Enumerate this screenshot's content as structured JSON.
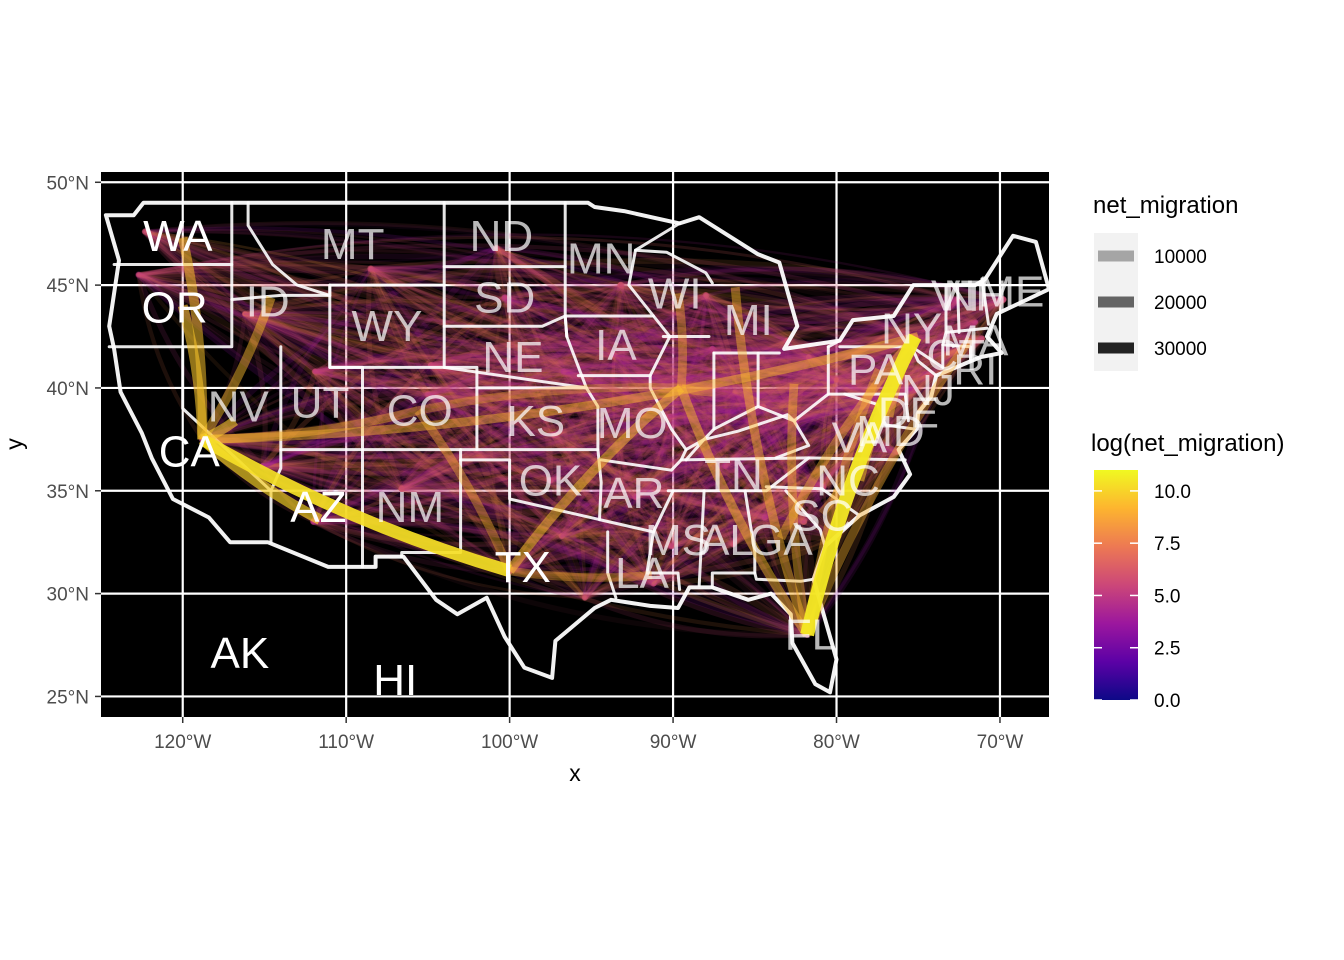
{
  "chart_data": {
    "type": "map",
    "xlabel": "x",
    "ylabel": "y",
    "xlim": [
      -125,
      -67
    ],
    "ylim": [
      24,
      50.5
    ],
    "x_ticks": [
      {
        "value": -120,
        "label": "120°W"
      },
      {
        "value": -110,
        "label": "110°W"
      },
      {
        "value": -100,
        "label": "100°W"
      },
      {
        "value": -90,
        "label": "90°W"
      },
      {
        "value": -80,
        "label": "80°W"
      },
      {
        "value": -70,
        "label": "70°W"
      }
    ],
    "y_ticks": [
      {
        "value": 25,
        "label": "25°N"
      },
      {
        "value": 30,
        "label": "30°N"
      },
      {
        "value": 35,
        "label": "35°N"
      },
      {
        "value": 40,
        "label": "40°N"
      },
      {
        "value": 45,
        "label": "45°N"
      },
      {
        "value": 50,
        "label": "50°N"
      }
    ],
    "panel_background": "#000000",
    "gridline_color": "#ffffff",
    "state_border_color": "#ffffff",
    "state_labels": [
      {
        "label": "WA",
        "lon": -120.3,
        "lat": 47.4
      },
      {
        "label": "OR",
        "lon": -120.5,
        "lat": 43.9
      },
      {
        "label": "ID",
        "lon": -114.8,
        "lat": 44.2
      },
      {
        "label": "MT",
        "lon": -109.6,
        "lat": 47.0
      },
      {
        "label": "ND",
        "lon": -100.5,
        "lat": 47.4
      },
      {
        "label": "SD",
        "lon": -100.3,
        "lat": 44.4
      },
      {
        "label": "MN",
        "lon": -94.4,
        "lat": 46.3
      },
      {
        "label": "WY",
        "lon": -107.5,
        "lat": 43.0
      },
      {
        "label": "NE",
        "lon": -99.8,
        "lat": 41.5
      },
      {
        "label": "IA",
        "lon": -93.5,
        "lat": 42.1
      },
      {
        "label": "WI",
        "lon": -89.9,
        "lat": 44.6
      },
      {
        "label": "MI",
        "lon": -85.4,
        "lat": 43.3
      },
      {
        "label": "NV",
        "lon": -116.6,
        "lat": 39.1
      },
      {
        "label": "UT",
        "lon": -111.6,
        "lat": 39.3
      },
      {
        "label": "CO",
        "lon": -105.5,
        "lat": 38.9
      },
      {
        "label": "KS",
        "lon": -98.4,
        "lat": 38.4
      },
      {
        "label": "MO",
        "lon": -92.5,
        "lat": 38.3
      },
      {
        "label": "CA",
        "lon": -119.6,
        "lat": 36.9
      },
      {
        "label": "AZ",
        "lon": -111.7,
        "lat": 34.2
      },
      {
        "label": "NM",
        "lon": -106.1,
        "lat": 34.2
      },
      {
        "label": "OK",
        "lon": -97.5,
        "lat": 35.5
      },
      {
        "label": "AR",
        "lon": -92.4,
        "lat": 34.9
      },
      {
        "label": "TN",
        "lon": -86.3,
        "lat": 35.8
      },
      {
        "label": "NC",
        "lon": -79.3,
        "lat": 35.5
      },
      {
        "label": "TX",
        "lon": -99.2,
        "lat": 31.3
      },
      {
        "label": "LA",
        "lon": -91.9,
        "lat": 31.0
      },
      {
        "label": "MS",
        "lon": -89.7,
        "lat": 32.6
      },
      {
        "label": "AL",
        "lon": -86.7,
        "lat": 32.6
      },
      {
        "label": "GA",
        "lon": -83.4,
        "lat": 32.6
      },
      {
        "label": "SC",
        "lon": -80.9,
        "lat": 33.8
      },
      {
        "label": "FL",
        "lon": -81.6,
        "lat": 28.0
      },
      {
        "label": "VA",
        "lon": -78.6,
        "lat": 37.6
      },
      {
        "label": "MD",
        "lon": -76.7,
        "lat": 37.9
      },
      {
        "label": "DE",
        "lon": -75.6,
        "lat": 38.8
      },
      {
        "label": "NJ",
        "lon": -74.4,
        "lat": 39.9
      },
      {
        "label": "PA",
        "lon": -77.6,
        "lat": 40.9
      },
      {
        "label": "NY",
        "lon": -75.4,
        "lat": 42.9
      },
      {
        "label": "CT",
        "lon": -72.7,
        "lat": 41.6
      },
      {
        "label": "RI",
        "lon": -71.5,
        "lat": 40.9
      },
      {
        "label": "MA",
        "lon": -71.5,
        "lat": 42.3
      },
      {
        "label": "VT",
        "lon": -72.5,
        "lat": 44.5
      },
      {
        "label": "NH",
        "lon": -71.5,
        "lat": 44.5
      },
      {
        "label": "ME",
        "lon": -69.3,
        "lat": 44.7
      },
      {
        "label": "AK",
        "lon": -116.5,
        "lat": 27.1
      },
      {
        "label": "HI",
        "lon": -107.0,
        "lat": 25.8
      }
    ],
    "flows": [
      {
        "from": [
          -118.8,
          37.5
        ],
        "to": [
          -100.0,
          31.1
        ],
        "net_migration": 30000
      },
      {
        "from": [
          -118.8,
          37.5
        ],
        "to": [
          -120.0,
          44.0
        ],
        "net_migration": 16000
      },
      {
        "from": [
          -118.8,
          37.5
        ],
        "to": [
          -120.0,
          47.3
        ],
        "net_migration": 14000
      },
      {
        "from": [
          -118.8,
          37.5
        ],
        "to": [
          -116.8,
          38.4
        ],
        "net_migration": 17000
      },
      {
        "from": [
          -118.8,
          37.5
        ],
        "to": [
          -111.6,
          33.6
        ],
        "net_migration": 20000
      },
      {
        "from": [
          -118.8,
          37.5
        ],
        "to": [
          -114.6,
          44.4
        ],
        "net_migration": 12000
      },
      {
        "from": [
          -118.8,
          37.5
        ],
        "to": [
          -105.6,
          38.9
        ],
        "net_migration": 9000
      },
      {
        "from": [
          -118.8,
          37.5
        ],
        "to": [
          -75.0,
          42.5
        ],
        "net_migration": 11000
      },
      {
        "from": [
          -75.2,
          42.5
        ],
        "to": [
          -81.8,
          28.0
        ],
        "net_migration": 38000
      },
      {
        "from": [
          -75.2,
          42.5
        ],
        "to": [
          -78.6,
          35.5
        ],
        "net_migration": 14000
      },
      {
        "from": [
          -75.2,
          42.5
        ],
        "to": [
          -83.4,
          32.7
        ],
        "net_migration": 10000
      },
      {
        "from": [
          -75.2,
          42.5
        ],
        "to": [
          -76.8,
          38.6
        ],
        "net_migration": 12000
      },
      {
        "from": [
          -89.5,
          40.0
        ],
        "to": [
          -100.0,
          31.1
        ],
        "net_migration": 13000
      },
      {
        "from": [
          -89.5,
          40.0
        ],
        "to": [
          -81.8,
          28.0
        ],
        "net_migration": 12000
      },
      {
        "from": [
          -89.5,
          40.0
        ],
        "to": [
          -89.7,
          44.6
        ],
        "net_migration": 9000
      },
      {
        "from": [
          -89.5,
          40.0
        ],
        "to": [
          -87.6,
          39.8
        ],
        "net_migration": 8000
      },
      {
        "from": [
          -89.5,
          40.0
        ],
        "to": [
          -105.6,
          38.9
        ],
        "net_migration": 7000
      },
      {
        "from": [
          -86.2,
          44.9
        ],
        "to": [
          -81.8,
          28.0
        ],
        "net_migration": 11000
      },
      {
        "from": [
          -82.6,
          40.2
        ],
        "to": [
          -81.8,
          28.0
        ],
        "net_migration": 10000
      },
      {
        "from": [
          -71.8,
          42.4
        ],
        "to": [
          -81.8,
          28.0
        ],
        "net_migration": 9000
      },
      {
        "from": [
          -77.4,
          40.9
        ],
        "to": [
          -81.8,
          28.0
        ],
        "net_migration": 9000
      },
      {
        "from": [
          -100.0,
          31.1
        ],
        "to": [
          -91.3,
          30.9
        ],
        "net_migration": 8000
      },
      {
        "from": [
          -100.0,
          31.1
        ],
        "to": [
          -105.6,
          38.9
        ],
        "net_migration": 9000
      },
      {
        "from": [
          -80.9,
          33.9
        ],
        "to": [
          -76.9,
          39.0
        ],
        "net_migration": 8000
      }
    ],
    "legends": [
      {
        "title": "net_migration",
        "type": "alpha",
        "entries": [
          {
            "label": "10000",
            "value": 10000
          },
          {
            "label": "20000",
            "value": 20000
          },
          {
            "label": "30000",
            "value": 30000
          }
        ]
      },
      {
        "title": "log(net_migration)",
        "type": "colorbar",
        "palette": "plasma",
        "stops": [
          "#0d0887",
          "#5c01a6",
          "#9c179e",
          "#cc4778",
          "#ed7953",
          "#fdb42f",
          "#f0f921"
        ],
        "range": [
          0,
          11
        ],
        "ticks": [
          {
            "label": "0.0",
            "value": 0
          },
          {
            "label": "2.5",
            "value": 2.5
          },
          {
            "label": "5.0",
            "value": 5
          },
          {
            "label": "7.5",
            "value": 7.5
          },
          {
            "label": "10.0",
            "value": 10
          }
        ]
      }
    ]
  }
}
